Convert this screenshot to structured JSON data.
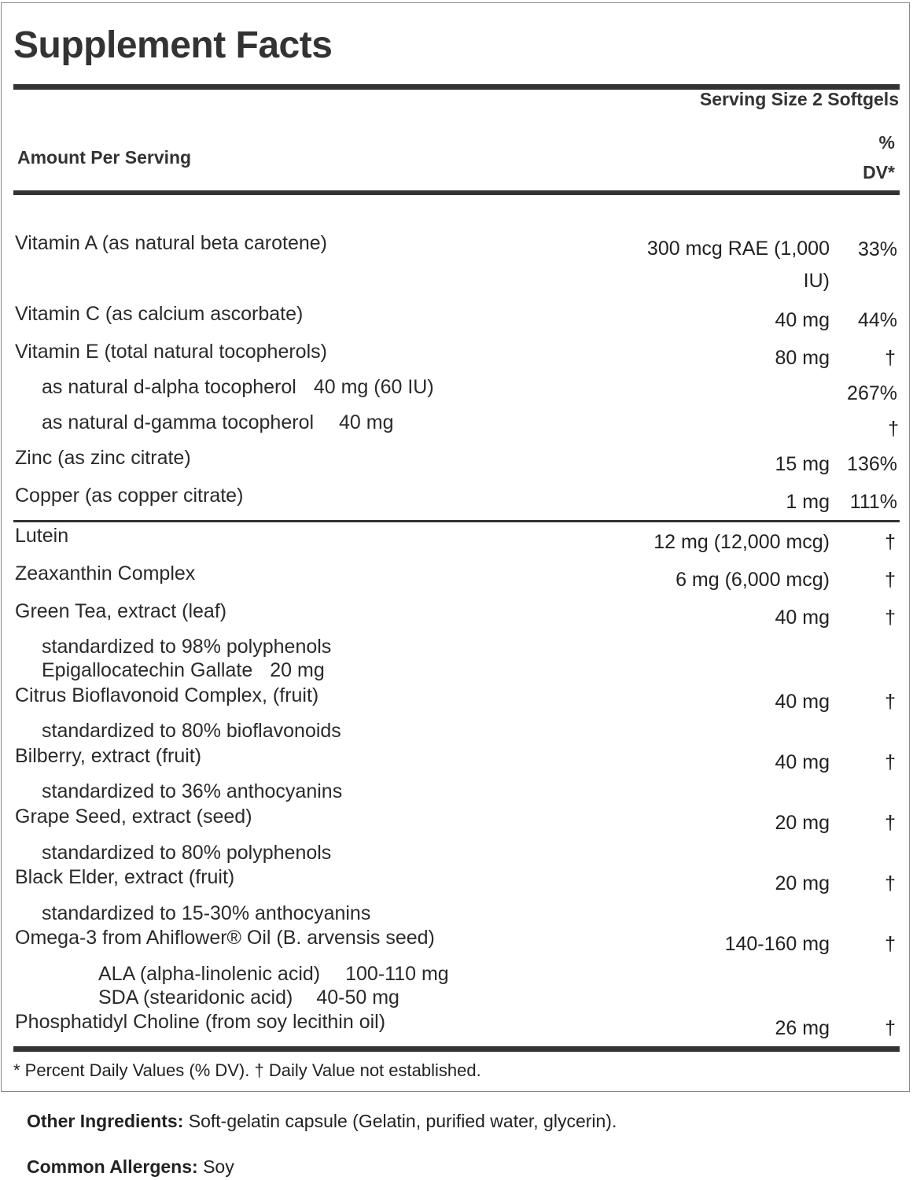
{
  "title": "Supplement Facts",
  "serving_size": "Serving Size 2 Softgels",
  "amount_per_serving": "Amount Per Serving",
  "dv_header_line1": "%",
  "dv_header_line2": "DV*",
  "rows": [
    {
      "label": "Vitamin A (as natural beta carotene)",
      "amount": "300 mcg RAE (1,000 IU)",
      "dv": "33%"
    },
    {
      "label": "Vitamin C (as calcium ascorbate)",
      "amount": "40 mg",
      "dv": "44%"
    },
    {
      "label": "Vitamin E (total natural tocopherols)",
      "amount": "80 mg",
      "dv": "†"
    },
    {
      "label": "as natural d-alpha tocopherol",
      "amount": "40 mg (60 IU)",
      "dv": "267%"
    },
    {
      "label": "as natural d-gamma tocopherol",
      "amount": "40 mg",
      "dv": "†"
    },
    {
      "label": "Zinc (as zinc citrate)",
      "amount": "15 mg",
      "dv": "136%"
    },
    {
      "label": "Copper (as copper citrate)",
      "amount": "1 mg",
      "dv": "111%"
    },
    {
      "label": "Lutein",
      "amount": "12 mg (12,000 mcg)",
      "dv": "†"
    },
    {
      "label": "Zeaxanthin Complex",
      "amount": "6 mg (6,000 mcg)",
      "dv": "†"
    },
    {
      "label": "Green Tea, extract (leaf)",
      "amount": "40 mg",
      "dv": "†"
    },
    {
      "label": "standardized to 98% polyphenols"
    },
    {
      "label": "Epigallocatechin Gallate",
      "amount": "20 mg"
    },
    {
      "label": "Citrus Bioflavonoid Complex, (fruit)",
      "amount": "40 mg",
      "dv": "†"
    },
    {
      "label": "standardized to 80% bioflavonoids"
    },
    {
      "label": "Bilberry, extract (fruit)",
      "amount": "40 mg",
      "dv": "†"
    },
    {
      "label": "standardized to 36% anthocyanins"
    },
    {
      "label": "Grape Seed, extract (seed)",
      "amount": "20 mg",
      "dv": "†"
    },
    {
      "label": "standardized to 80% polyphenols"
    },
    {
      "label": "Black Elder, extract (fruit)",
      "amount": "20 mg",
      "dv": "†"
    },
    {
      "label": "standardized to 15-30% anthocyanins"
    },
    {
      "label": "Omega-3 from Ahiflower® Oil (B. arvensis seed)",
      "amount": "140-160 mg",
      "dv": "†"
    },
    {
      "label": "ALA (alpha-linolenic acid)",
      "amount": "100-110 mg"
    },
    {
      "label": "SDA (stearidonic acid)",
      "amount": "40-50 mg"
    },
    {
      "label": "Phosphatidyl Choline (from soy lecithin oil)",
      "amount": "26 mg",
      "dv": "†"
    }
  ],
  "footnote": "* Percent Daily Values (% DV). † Daily Value not established.",
  "other_ingredients": {
    "label": "Other Ingredients:",
    "value": "Soft-gelatin capsule (Gelatin, purified water, glycerin)."
  },
  "allergens": {
    "label": "Common Allergens:",
    "value": "Soy"
  }
}
